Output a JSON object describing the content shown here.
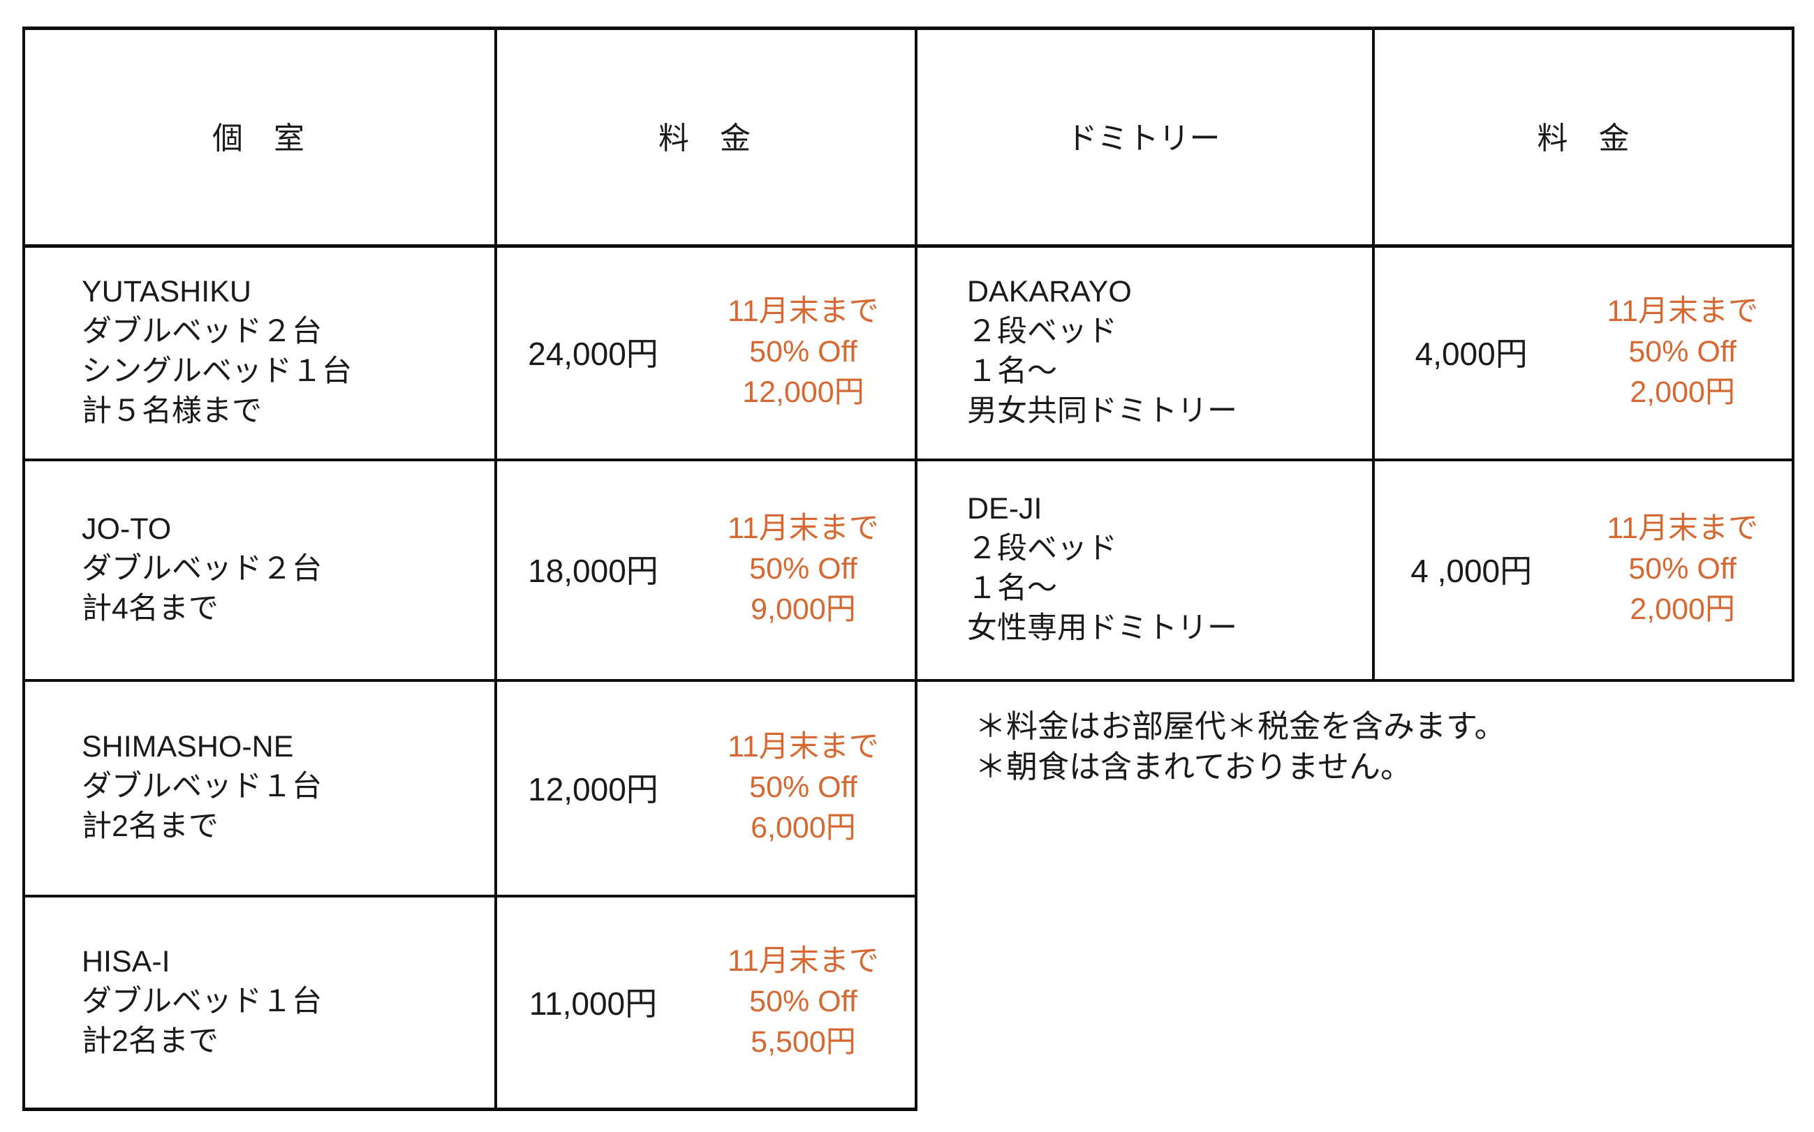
{
  "colors": {
    "background": "#ffffff",
    "text": "#1a1a1a",
    "border": "#0d0d0d",
    "promo_accent": "#d66832"
  },
  "header": {
    "private_room": "個　室",
    "rate_left": "料　金",
    "dormitory": "ドミトリー",
    "rate_right": "料　金"
  },
  "private_rooms": [
    {
      "name_lines": [
        "YUTASHIKU",
        "ダブルベッド２台",
        "シングルベッド１台",
        "計５名様まで"
      ],
      "price": "24,000円",
      "promo_lines": [
        "11月末まで",
        "50% Off",
        "12,000円"
      ]
    },
    {
      "name_lines": [
        "JO-TO",
        "ダブルベッド２台",
        "計4名まで"
      ],
      "price": "18,000円",
      "promo_lines": [
        "11月末まで",
        "50% Off",
        "9,000円"
      ]
    },
    {
      "name_lines": [
        "SHIMASHO-NE",
        "ダブルベッド１台",
        "計2名まで"
      ],
      "price": "12,000円",
      "promo_lines": [
        "11月末まで",
        "50% Off",
        "6,000円"
      ]
    },
    {
      "name_lines": [
        "HISA-I",
        "ダブルベッド１台",
        "計2名まで"
      ],
      "price": "11,000円",
      "promo_lines": [
        "11月末まで",
        "50% Off",
        "5,500円"
      ]
    }
  ],
  "dormitories": [
    {
      "name_lines": [
        "DAKARAYO",
        "２段ベッド",
        "１名〜",
        "男女共同ドミトリー"
      ],
      "price": "4,000円",
      "promo_lines": [
        "11月末まで",
        "50% Off",
        "2,000円"
      ]
    },
    {
      "name_lines": [
        "DE-JI",
        "２段ベッド",
        "１名〜",
        "女性専用ドミトリー"
      ],
      "price": "4 ,000円",
      "promo_lines": [
        "11月末まで",
        "50% Off",
        "2,000円"
      ]
    }
  ],
  "notes": [
    "＊料金はお部屋代＊税金を含みます。",
    "＊朝食は含まれておりません。"
  ]
}
